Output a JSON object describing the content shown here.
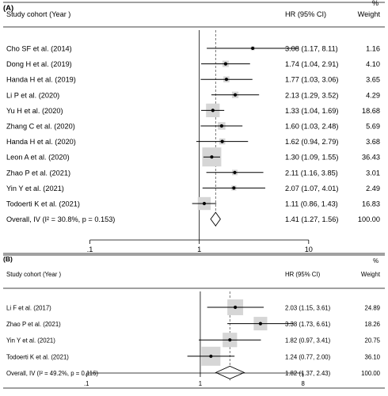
{
  "chart_data": [
    {
      "type": "forest",
      "panel_label": "(A)",
      "col_study": "Study cohort (Year )",
      "col_hr": "HR (95% CI)",
      "col_weight": "Weight",
      "weight_unit": "%",
      "x_scale": "log",
      "x_ticks": [
        {
          "value": 0.1,
          "label": ".1"
        },
        {
          "value": 1,
          "label": "1"
        },
        {
          "value": 10,
          "label": "10"
        }
      ],
      "xlim": [
        0.05,
        14
      ],
      "reference_line": 1,
      "pooled_line": 1.41,
      "rows": [
        {
          "study": "Cho SF et al. (2014)",
          "hr": 3.08,
          "lo": 1.17,
          "hi": 8.11,
          "hr_text": "3.08 (1.17, 8.11)",
          "weight": 1.16,
          "weight_text": "1.16"
        },
        {
          "study": "Dong H et al. (2019)",
          "hr": 1.74,
          "lo": 1.04,
          "hi": 2.91,
          "hr_text": "1.74 (1.04, 2.91)",
          "weight": 4.1,
          "weight_text": "4.10"
        },
        {
          "study": "Handa H et al. (2019)",
          "hr": 1.77,
          "lo": 1.03,
          "hi": 3.06,
          "hr_text": "1.77 (1.03, 3.06)",
          "weight": 3.65,
          "weight_text": "3.65"
        },
        {
          "study": "Li P et al. (2020)",
          "hr": 2.13,
          "lo": 1.29,
          "hi": 3.52,
          "hr_text": "2.13 (1.29, 3.52)",
          "weight": 4.29,
          "weight_text": "4.29"
        },
        {
          "study": "Yu H et al. (2020)",
          "hr": 1.33,
          "lo": 1.04,
          "hi": 1.69,
          "hr_text": "1.33 (1.04, 1.69)",
          "weight": 18.68,
          "weight_text": "18.68"
        },
        {
          "study": "Zhang C et al. (2020)",
          "hr": 1.6,
          "lo": 1.03,
          "hi": 2.48,
          "hr_text": "1.60 (1.03, 2.48)",
          "weight": 5.69,
          "weight_text": "5.69"
        },
        {
          "study": "Handa H et al. (2020)",
          "hr": 1.62,
          "lo": 0.94,
          "hi": 2.79,
          "hr_text": "1.62 (0.94, 2.79)",
          "weight": 3.68,
          "weight_text": "3.68"
        },
        {
          "study": "Leon A et al. (2020)",
          "hr": 1.3,
          "lo": 1.09,
          "hi": 1.55,
          "hr_text": "1.30 (1.09, 1.55)",
          "weight": 36.43,
          "weight_text": "36.43"
        },
        {
          "study": "Zhao P et al. (2021)",
          "hr": 2.11,
          "lo": 1.16,
          "hi": 3.85,
          "hr_text": "2.11 (1.16, 3.85)",
          "weight": 3.01,
          "weight_text": "3.01"
        },
        {
          "study": "Yin Y et al. (2021)",
          "hr": 2.07,
          "lo": 1.07,
          "hi": 4.01,
          "hr_text": "2.07 (1.07, 4.01)",
          "weight": 2.49,
          "weight_text": "2.49"
        },
        {
          "study": "Todoerti K et al. (2021)",
          "hr": 1.11,
          "lo": 0.86,
          "hi": 1.43,
          "hr_text": "1.11 (0.86, 1.43)",
          "weight": 16.83,
          "weight_text": "16.83"
        }
      ],
      "overall": {
        "label": "Overall, IV (I² = 30.8%, p = 0.153)",
        "hr": 1.41,
        "lo": 1.27,
        "hi": 1.56,
        "hr_text": "1.41 (1.27, 1.56)",
        "weight_text": "100.00"
      }
    },
    {
      "type": "forest",
      "panel_label": "(B)",
      "col_study": "Study cohort (Year )",
      "col_hr": "HR (95% CI)",
      "col_weight": "Weight",
      "weight_unit": "%",
      "x_scale": "log",
      "x_ticks": [
        {
          "value": 0.1,
          "label": ".1"
        },
        {
          "value": 1,
          "label": "1"
        },
        {
          "value": 8,
          "label": "8"
        }
      ],
      "xlim": [
        0.07,
        12
      ],
      "reference_line": 1,
      "pooled_line": 1.82,
      "rows": [
        {
          "study": "Li F et al. (2017)",
          "hr": 2.03,
          "lo": 1.15,
          "hi": 3.61,
          "hr_text": "2.03 (1.15, 3.61)",
          "weight": 24.89,
          "weight_text": "24.89"
        },
        {
          "study": "Zhao P et al. (2021)",
          "hr": 3.38,
          "lo": 1.73,
          "hi": 6.61,
          "hr_text": "3.38 (1.73, 6.61)",
          "weight": 18.26,
          "weight_text": "18.26"
        },
        {
          "study": "Yin Y et al. (2021)",
          "hr": 1.82,
          "lo": 0.97,
          "hi": 3.41,
          "hr_text": "1.82 (0.97, 3.41)",
          "weight": 20.75,
          "weight_text": "20.75"
        },
        {
          "study": "Todoerti K et al. (2021)",
          "hr": 1.24,
          "lo": 0.77,
          "hi": 2.0,
          "hr_text": "1.24 (0.77, 2.00)",
          "weight": 36.1,
          "weight_text": "36.10"
        }
      ],
      "overall": {
        "label": "Overall, IV (I² = 49.2%, p = 0.116)",
        "hr": 1.82,
        "lo": 1.37,
        "hi": 2.43,
        "hr_text": "1.82 (1.37, 2.43)",
        "weight_text": "100.00"
      }
    }
  ],
  "style": {
    "box_color": "#d6d6d6",
    "line_color": "#000000",
    "pooled_line_color": "#555555"
  }
}
